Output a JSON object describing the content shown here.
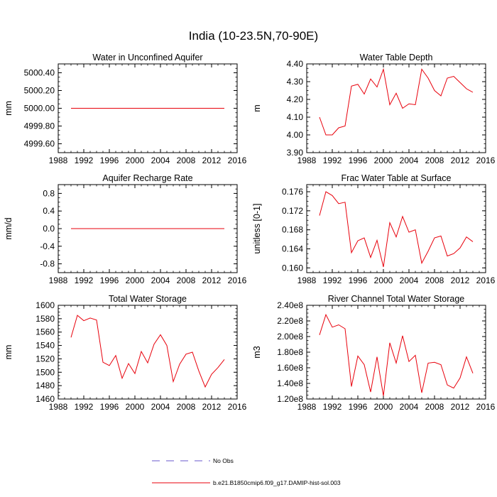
{
  "figure_title": "India (10-23.5N,70-90E)",
  "colors": {
    "series": "#e8000b",
    "obs": "#6a5acd",
    "axis": "#000000"
  },
  "legend": {
    "obs_label": "No Obs",
    "model_label": "b.e21.B1850cmip6.f09_g17.DAMIP-hist-sol.003"
  },
  "chart_data": [
    {
      "type": "line",
      "title": "Water in Unconfined Aquifer",
      "ylabel": "mm",
      "xlim": [
        1988,
        2016
      ],
      "xticks": [
        "1988",
        "1992",
        "1996",
        "2000",
        "2004",
        "2008",
        "2012",
        "2016"
      ],
      "ylim": [
        4999.5,
        5000.5
      ],
      "yticks": [
        4999.6,
        4999.8,
        5000.0,
        5000.2,
        5000.4
      ],
      "ytick_labels": [
        "4999.60",
        "4999.80",
        "5000.00",
        "5000.20",
        "5000.40"
      ],
      "x": [
        1990,
        1991,
        1992,
        1993,
        1994,
        1995,
        1996,
        1997,
        1998,
        1999,
        2000,
        2001,
        2002,
        2003,
        2004,
        2005,
        2006,
        2007,
        2008,
        2009,
        2010,
        2011,
        2012,
        2013,
        2014
      ],
      "values": [
        5000,
        5000,
        5000,
        5000,
        5000,
        5000,
        5000,
        5000,
        5000,
        5000,
        5000,
        5000,
        5000,
        5000,
        5000,
        5000,
        5000,
        5000,
        5000,
        5000,
        5000,
        5000,
        5000,
        5000,
        5000
      ]
    },
    {
      "type": "line",
      "title": "Water Table Depth",
      "ylabel": "m",
      "xlim": [
        1988,
        2016
      ],
      "xticks": [
        "1988",
        "1992",
        "1996",
        "2000",
        "2004",
        "2008",
        "2012",
        "2016"
      ],
      "ylim": [
        3.9,
        4.4
      ],
      "yticks": [
        3.9,
        4.0,
        4.1,
        4.2,
        4.3,
        4.4
      ],
      "ytick_labels": [
        "3.90",
        "4.00",
        "4.10",
        "4.20",
        "4.30",
        "4.40"
      ],
      "x": [
        1990,
        1991,
        1992,
        1993,
        1994,
        1995,
        1996,
        1997,
        1998,
        1999,
        2000,
        2001,
        2002,
        2003,
        2004,
        2005,
        2006,
        2007,
        2008,
        2009,
        2010,
        2011,
        2012,
        2013,
        2014
      ],
      "values": [
        4.1,
        4.0,
        4.0,
        4.04,
        4.05,
        4.275,
        4.285,
        4.23,
        4.315,
        4.27,
        4.37,
        4.17,
        4.235,
        4.15,
        4.175,
        4.17,
        4.37,
        4.32,
        4.25,
        4.22,
        4.32,
        4.33,
        4.295,
        4.26,
        4.24
      ]
    },
    {
      "type": "line",
      "title": "Aquifer Recharge Rate",
      "ylabel": "mm/d",
      "xlim": [
        1988,
        2016
      ],
      "xticks": [
        "1988",
        "1992",
        "1996",
        "2000",
        "2004",
        "2008",
        "2012",
        "2016"
      ],
      "ylim": [
        -1.0,
        1.0
      ],
      "yticks": [
        -0.8,
        -0.4,
        0.0,
        0.4,
        0.8
      ],
      "ytick_labels": [
        "-0.8",
        "-0.4",
        "0.0",
        "0.4",
        "0.8"
      ],
      "x": [
        1990,
        1991,
        1992,
        1993,
        1994,
        1995,
        1996,
        1997,
        1998,
        1999,
        2000,
        2001,
        2002,
        2003,
        2004,
        2005,
        2006,
        2007,
        2008,
        2009,
        2010,
        2011,
        2012,
        2013,
        2014
      ],
      "values": [
        0,
        0,
        0,
        0,
        0,
        0,
        0,
        0,
        0,
        0,
        0,
        0,
        0,
        0,
        0,
        0,
        0,
        0,
        0,
        0,
        0,
        0,
        0,
        0,
        0
      ]
    },
    {
      "type": "line",
      "title": "Frac Water Table at Surface",
      "ylabel": "unitless [0-1]",
      "xlim": [
        1988,
        2016
      ],
      "xticks": [
        "1988",
        "1992",
        "1996",
        "2000",
        "2004",
        "2008",
        "2012",
        "2016"
      ],
      "ylim": [
        0.159,
        0.1775
      ],
      "yticks": [
        0.16,
        0.164,
        0.168,
        0.172,
        0.176
      ],
      "ytick_labels": [
        "0.160",
        "0.164",
        "0.168",
        "0.172",
        "0.176"
      ],
      "x": [
        1990,
        1991,
        1992,
        1993,
        1994,
        1995,
        1996,
        1997,
        1998,
        1999,
        2000,
        2001,
        2002,
        2003,
        2004,
        2005,
        2006,
        2007,
        2008,
        2009,
        2010,
        2011,
        2012,
        2013,
        2014
      ],
      "values": [
        0.171,
        0.176,
        0.1752,
        0.1735,
        0.1738,
        0.1632,
        0.1657,
        0.1663,
        0.1622,
        0.1658,
        0.1602,
        0.1695,
        0.1665,
        0.1708,
        0.1675,
        0.168,
        0.161,
        0.1635,
        0.1663,
        0.1667,
        0.1625,
        0.163,
        0.1642,
        0.1665,
        0.1655
      ]
    },
    {
      "type": "line",
      "title": "Total Water Storage",
      "ylabel": "mm",
      "xlim": [
        1988,
        2016
      ],
      "xticks": [
        "1988",
        "1992",
        "1996",
        "2000",
        "2004",
        "2008",
        "2012",
        "2016"
      ],
      "ylim": [
        1460,
        1600
      ],
      "yticks": [
        1460,
        1480,
        1500,
        1520,
        1540,
        1560,
        1580,
        1600
      ],
      "ytick_labels": [
        "1460",
        "1480",
        "1500",
        "1520",
        "1540",
        "1560",
        "1580",
        "1600"
      ],
      "x": [
        1990,
        1991,
        1992,
        1993,
        1994,
        1995,
        1996,
        1997,
        1998,
        1999,
        2000,
        2001,
        2002,
        2003,
        2004,
        2005,
        2006,
        2007,
        2008,
        2009,
        2010,
        2011,
        2012,
        2013,
        2014
      ],
      "values": [
        1552,
        1585,
        1577,
        1581,
        1578,
        1515,
        1510,
        1525,
        1491,
        1513,
        1498,
        1531,
        1514,
        1542,
        1556,
        1540,
        1486,
        1512,
        1527,
        1530,
        1502,
        1478,
        1497,
        1507,
        1519
      ]
    },
    {
      "type": "line",
      "title": "River Channel Total Water Storage",
      "ylabel": "m3",
      "xlim": [
        1988,
        2016
      ],
      "xticks": [
        "1988",
        "1992",
        "1996",
        "2000",
        "2004",
        "2008",
        "2012",
        "2016"
      ],
      "ylim": [
        120000000.0,
        240000000.0
      ],
      "yticks": [
        120000000.0,
        140000000.0,
        160000000.0,
        180000000.0,
        200000000.0,
        220000000.0,
        240000000.0
      ],
      "ytick_labels": [
        "1.20e8",
        "1.40e8",
        "1.60e8",
        "1.80e8",
        "2.00e8",
        "2.20e8",
        "2.40e8"
      ],
      "x": [
        1990,
        1991,
        1992,
        1993,
        1994,
        1995,
        1996,
        1997,
        1998,
        1999,
        2000,
        2001,
        2002,
        2003,
        2004,
        2005,
        2006,
        2007,
        2008,
        2009,
        2010,
        2011,
        2012,
        2013,
        2014
      ],
      "values": [
        202000000.0,
        228000000.0,
        212000000.0,
        215000000.0,
        210000000.0,
        136000000.0,
        175000000.0,
        164000000.0,
        129000000.0,
        174000000.0,
        124000000.0,
        192000000.0,
        166000000.0,
        201000000.0,
        168000000.0,
        176000000.0,
        128000000.0,
        166000000.0,
        167000000.0,
        164000000.0,
        138000000.0,
        134000000.0,
        147000000.0,
        174000000.0,
        153000000.0
      ]
    }
  ]
}
